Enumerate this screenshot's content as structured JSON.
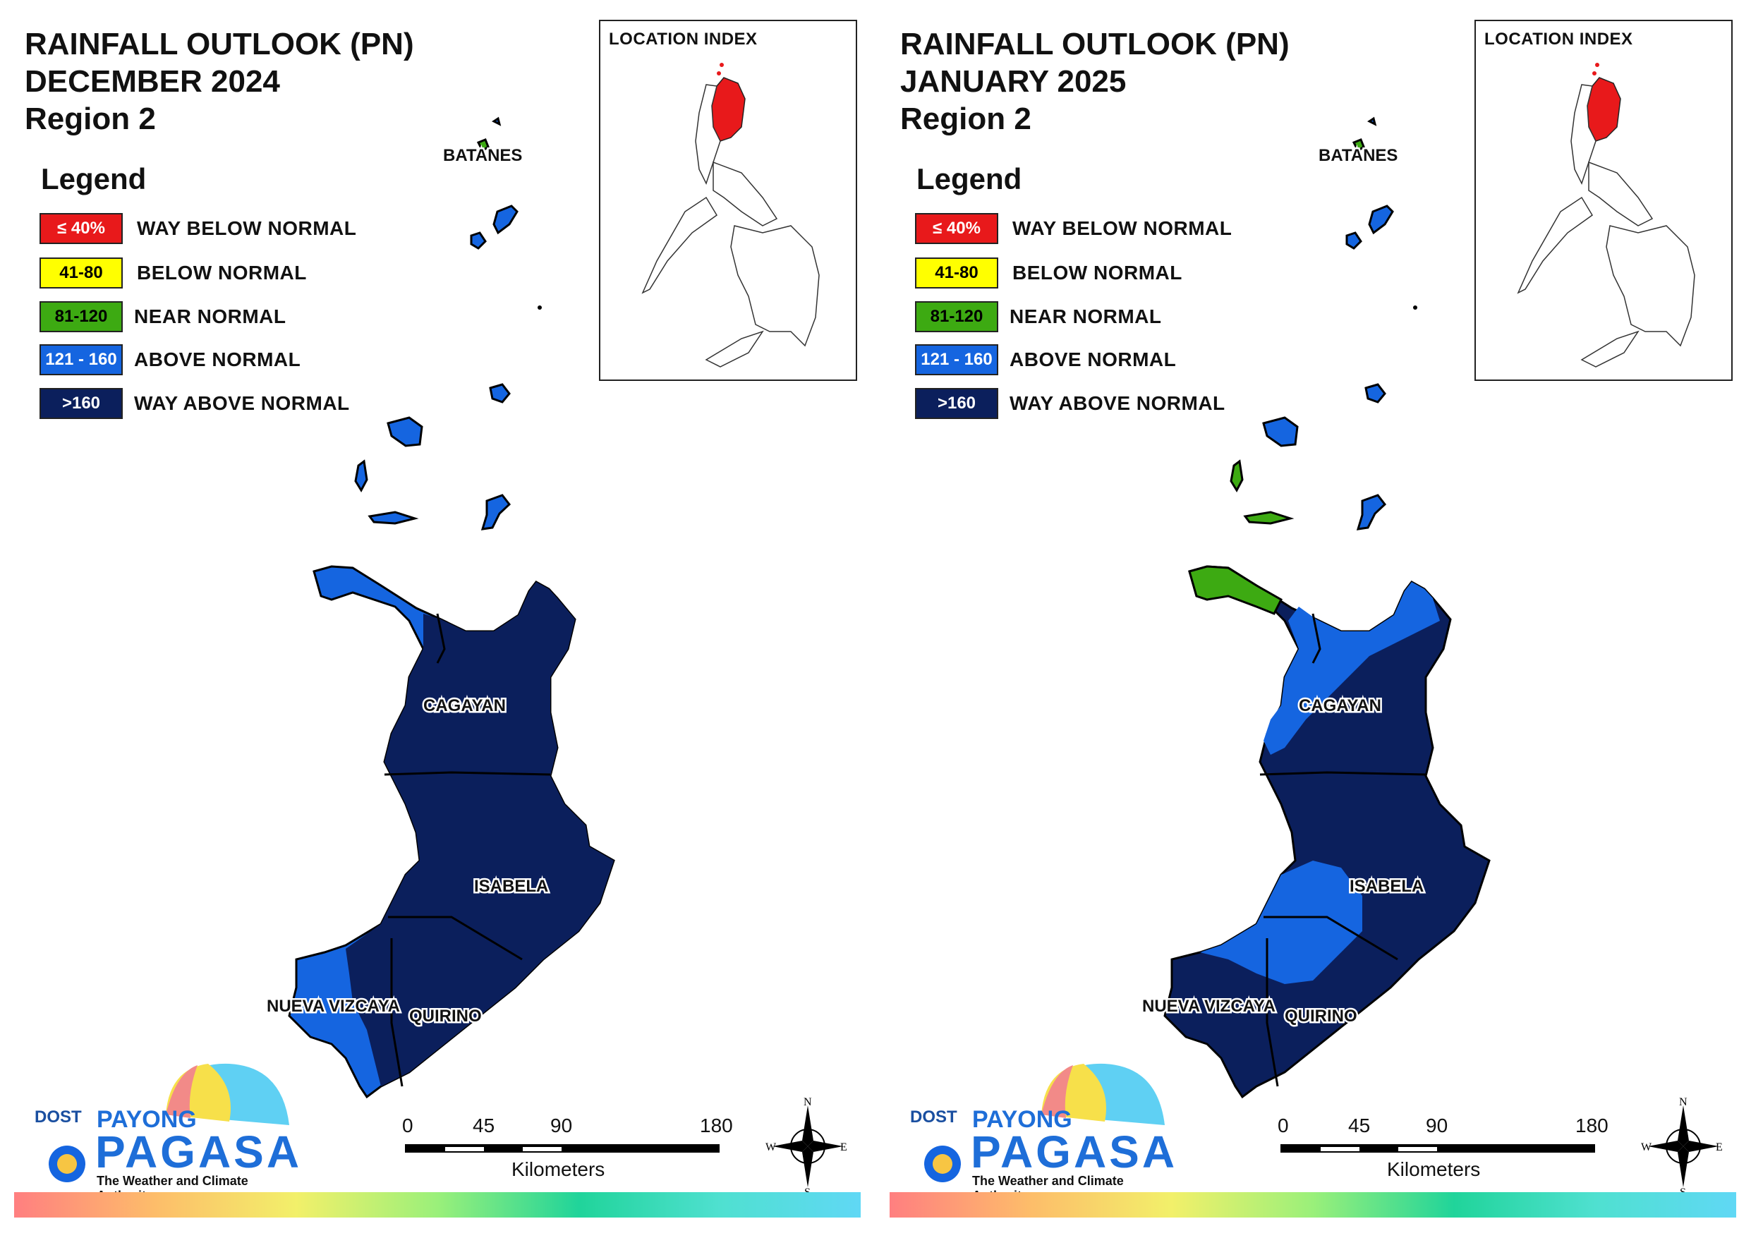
{
  "colors": {
    "way_below_normal": "#e8191b",
    "below_normal": "#ffff00",
    "near_normal": "#3daa12",
    "above_normal": "#1565e0",
    "way_above_normal": "#0b1f5c"
  },
  "legend": {
    "title": "Legend",
    "items": [
      {
        "range": "≤ 40%",
        "label": "WAY BELOW NORMAL"
      },
      {
        "range": "41-80",
        "label": "BELOW NORMAL"
      },
      {
        "range": "81-120",
        "label": "NEAR NORMAL"
      },
      {
        "range": "121 - 160",
        "label": "ABOVE NORMAL"
      },
      {
        "range": ">160",
        "label": "WAY ABOVE NORMAL"
      }
    ]
  },
  "location_index": {
    "title": "LOCATION INDEX"
  },
  "province_labels": {
    "batanes": "BATANES",
    "cagayan": "CAGAYAN",
    "isabela": "ISABELA",
    "nueva_vizcaya": "NUEVA VIZCAYA",
    "quirino": "QUIRINO"
  },
  "scale_bar": {
    "ticks": [
      "0",
      "45",
      "90",
      "180"
    ],
    "unit": "Kilometers"
  },
  "compass": {
    "n": "N",
    "s": "S",
    "e": "E",
    "w": "W"
  },
  "logo": {
    "dost": "DOST",
    "payong": "PAYONG",
    "pagasa": "PAGASA",
    "tagline": "The Weather and Climate Authority"
  },
  "panels": [
    {
      "title_line1": "RAINFALL OUTLOOK (PN)",
      "title_line2": "DECEMBER 2024",
      "title_line3": "Region 2",
      "categories": {
        "batanes": "near_normal",
        "babuyan_islands": "above_normal",
        "cagayan_nw_coast": "above_normal",
        "cagayan_main": "way_above_normal",
        "isabela": "way_above_normal",
        "nueva_vizcaya_west": "above_normal",
        "nueva_vizcaya_east": "way_above_normal",
        "quirino": "way_above_normal"
      }
    },
    {
      "title_line1": "RAINFALL OUTLOOK (PN)",
      "title_line2": "JANUARY 2025",
      "title_line3": "Region 2",
      "categories": {
        "batanes": "near_normal",
        "babuyan_islands": "above_normal",
        "cagayan_nw_tip": "near_normal",
        "cagayan_west": "above_normal",
        "cagayan_east": "way_above_normal",
        "isabela_west": "above_normal",
        "isabela_east": "way_above_normal",
        "nueva_vizcaya": "way_above_normal",
        "quirino": "way_above_normal"
      }
    }
  ]
}
